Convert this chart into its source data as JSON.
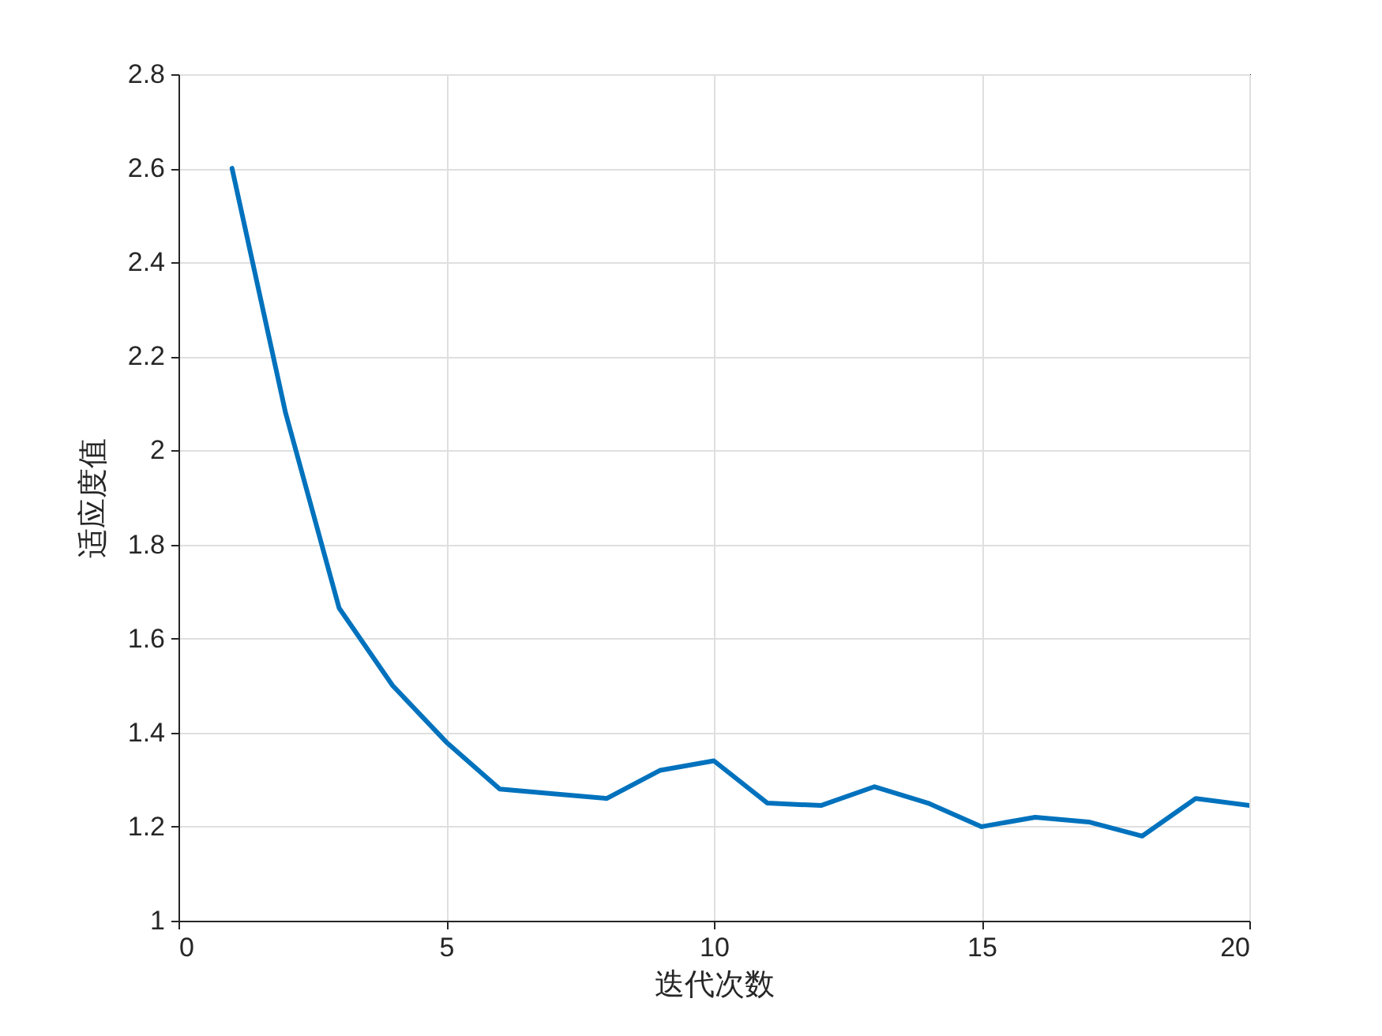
{
  "chart_data": {
    "type": "line",
    "xlabel": "迭代次数",
    "ylabel": "适应度值",
    "x": [
      1,
      2,
      3,
      4,
      5,
      6,
      7,
      8,
      9,
      10,
      11,
      12,
      13,
      14,
      15,
      16,
      17,
      18,
      19,
      20
    ],
    "series": [
      {
        "color": "#0072bd",
        "values": [
          2.6,
          2.08,
          1.665,
          1.5,
          1.38,
          1.28,
          1.27,
          1.26,
          1.32,
          1.34,
          1.25,
          1.245,
          1.285,
          1.25,
          1.2,
          1.22,
          1.21,
          1.18,
          1.26,
          1.245
        ]
      }
    ],
    "xlim": [
      0,
      20
    ],
    "xticks": [
      0,
      5,
      10,
      15,
      20
    ],
    "ylim": [
      1,
      2.8
    ],
    "yticks": [
      1,
      1.2,
      1.4,
      1.6,
      1.8,
      2,
      2.2,
      2.4,
      2.6,
      2.8
    ],
    "grid": true,
    "marker": "none",
    "line_style": "solid"
  }
}
